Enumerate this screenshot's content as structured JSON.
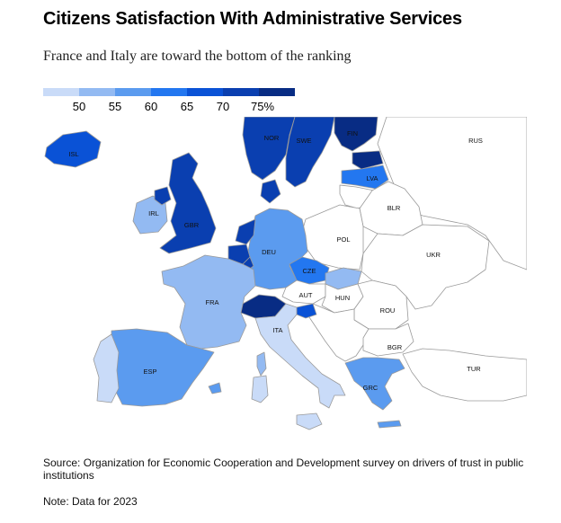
{
  "title": "Citizens Satisfaction With Administrative Services",
  "subtitle": "France and Italy are toward the bottom of the ranking",
  "legend": {
    "colors": [
      "#c9dbf8",
      "#93baf2",
      "#5b9bef",
      "#2377f0",
      "#0a52d6",
      "#0a3fb0",
      "#082c84"
    ],
    "tick_labels": [
      "50",
      "55",
      "60",
      "65",
      "70",
      "75%"
    ]
  },
  "map": {
    "labels": {
      "ISL": "ISL",
      "NOR": "NOR",
      "SWE": "SWE",
      "FIN": "FIN",
      "RUS": "RUS",
      "LVA": "LVA",
      "IRL": "IRL",
      "GBR": "GBR",
      "BLR": "BLR",
      "POL": "POL",
      "DEU": "DEU",
      "UKR": "UKR",
      "CZE": "CZE",
      "AUT": "AUT",
      "HUN": "HUN",
      "FRA": "FRA",
      "ROU": "ROU",
      "ITA": "ITA",
      "BGR": "BGR",
      "ESP": "ESP",
      "TUR": "TUR",
      "GRC": "GRC"
    },
    "colors": {
      "no_data": "#ffffff",
      "ISL": "#0a52d6",
      "NOR": "#0a3fb0",
      "SWE": "#0a3fb0",
      "FIN": "#082c84",
      "EST": "#082c84",
      "LVA": "#2377f0",
      "LTU": "#ffffff",
      "IRL": "#93baf2",
      "GBR": "#0a3fb0",
      "NLD": "#0a3fb0",
      "BEL": "#0a3fb0",
      "DEU": "#5b9bef",
      "POL": "#ffffff",
      "CZE": "#2377f0",
      "SVK": "#93baf2",
      "AUT": "#ffffff",
      "CHE": "#082c84",
      "SVN": "#0a52d6",
      "HUN": "#ffffff",
      "FRA": "#93baf2",
      "ITA": "#c9dbf8",
      "ESP": "#5b9bef",
      "PRT": "#c9dbf8",
      "GRC": "#5b9bef",
      "DNK": "#0a3fb0",
      "LUX": "#0a3fb0"
    }
  },
  "source": "Source: Organization for Economic Cooperation and Development survey on drivers of trust in public institutions",
  "note": "Note: Data for 2023"
}
